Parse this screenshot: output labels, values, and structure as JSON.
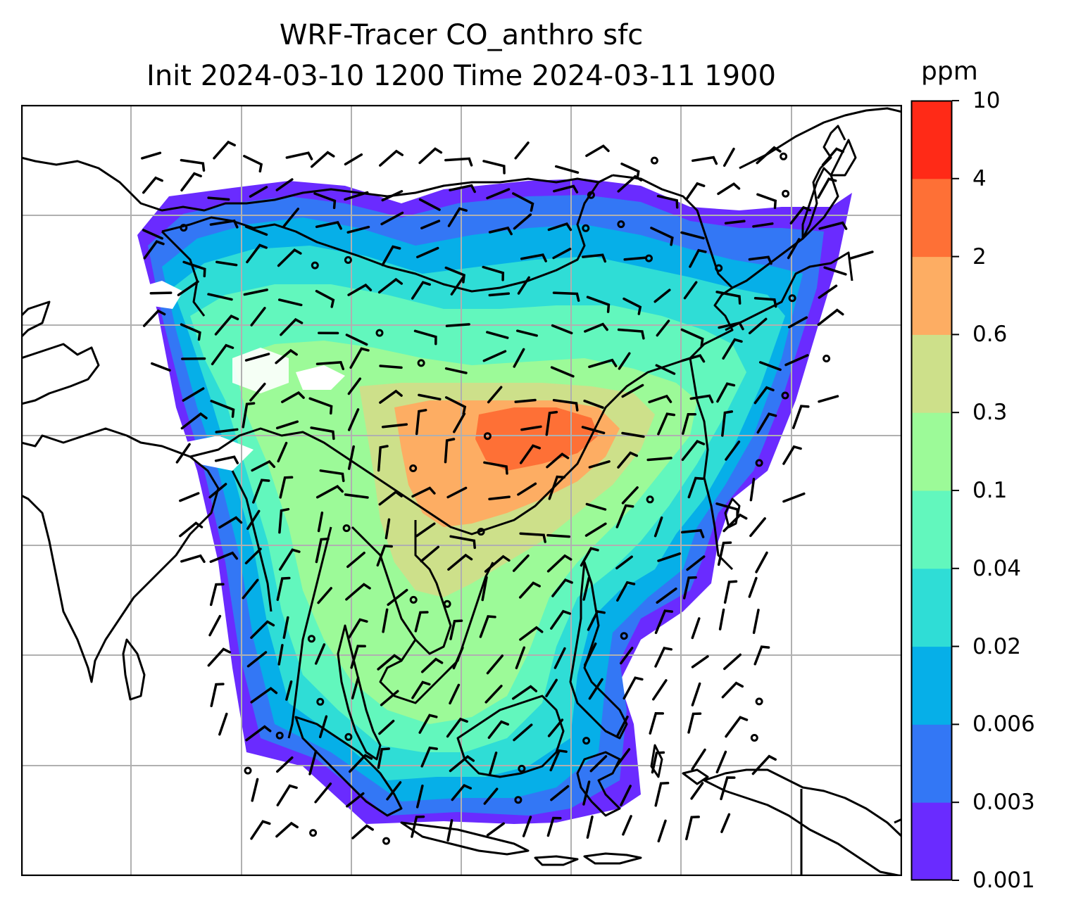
{
  "title": {
    "line1": "WRF-Tracer CO_anthro sfc",
    "line2": "Init 2024-03-10 1200 Time 2024-03-11 1900"
  },
  "colorbar": {
    "unit": "ppm",
    "tick_labels": [
      "10",
      "4",
      "2",
      "0.6",
      "0.3",
      "0.1",
      "0.04",
      "0.02",
      "0.006",
      "0.003",
      "0.001"
    ],
    "colors": [
      "#6a2bff",
      "#3377f5",
      "#06afe8",
      "#2fddd6",
      "#62f7bd",
      "#9cfa98",
      "#cde08a",
      "#fdad63",
      "#fe7036",
      "#ff2a17"
    ]
  },
  "map": {
    "field": "CO_anthro",
    "level": "sfc",
    "gridlines": true,
    "wind_barbs": true,
    "coastlines": true
  },
  "colors": {
    "land_line": "#000000",
    "grid": "#b0b0b0",
    "frame": "#000000"
  }
}
